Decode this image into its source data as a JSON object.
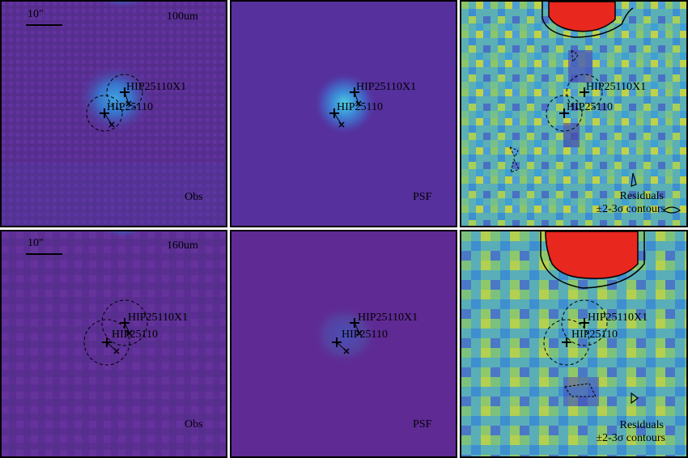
{
  "scale_bar_label": "10\"",
  "colors": {
    "background_obs": "#5a2d94",
    "background_psf": "#56309c",
    "residual_high": "#e8271f",
    "contour": "#000000"
  },
  "rows": [
    {
      "band_label": "100um",
      "panels": [
        {
          "label": "Obs",
          "type": "observed"
        },
        {
          "label": "PSF",
          "type": "model"
        },
        {
          "label_line1": "Residuals",
          "label_line2": "±2-3σ contours",
          "type": "residuals"
        }
      ],
      "sources": [
        {
          "name": "HIP25110X1",
          "marker": "plus"
        },
        {
          "name": "HIP25110",
          "marker": "plus"
        }
      ]
    },
    {
      "band_label": "160um",
      "panels": [
        {
          "label": "Obs",
          "type": "observed"
        },
        {
          "label": "PSF",
          "type": "model"
        },
        {
          "label_line1": "Residuals",
          "label_line2": "±2-3σ contours",
          "type": "residuals"
        }
      ],
      "sources": [
        {
          "name": "HIP25110X1",
          "marker": "plus"
        },
        {
          "name": "HIP25110",
          "marker": "plus"
        }
      ]
    }
  ]
}
